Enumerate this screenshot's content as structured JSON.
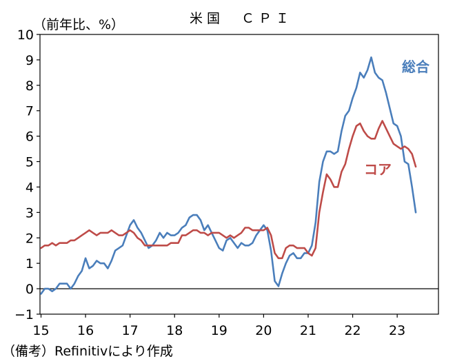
{
  "colors": {
    "headline": "#4a7ebb",
    "core": "#be4b48",
    "axis": "#000000"
  },
  "chart_data": {
    "type": "line",
    "title": "米国　ＣＰＩ",
    "ylabel": "（前年比、%）",
    "xlabel": "",
    "source": "（備考）Refinitivにより作成",
    "ylim": [
      -1,
      10
    ],
    "yticks": [
      "10",
      "9",
      "8",
      "7",
      "6",
      "5",
      "4",
      "3",
      "2",
      "1",
      "0",
      "−1"
    ],
    "xticks": [
      "15",
      "16",
      "17",
      "18",
      "19",
      "20",
      "21",
      "22",
      "23"
    ],
    "grid": false,
    "x_start": "2015-01",
    "series": [
      {
        "name": "総合",
        "color": "#4a7ebb",
        "values": [
          -0.2,
          -0.0,
          -0.0,
          -0.1,
          0.0,
          0.2,
          0.2,
          0.2,
          -0.0,
          0.2,
          0.5,
          0.7,
          1.2,
          0.8,
          0.9,
          1.1,
          1.0,
          1.0,
          0.8,
          1.1,
          1.5,
          1.6,
          1.7,
          2.1,
          2.5,
          2.7,
          2.4,
          2.2,
          1.9,
          1.6,
          1.7,
          1.9,
          2.2,
          2.0,
          2.2,
          2.1,
          2.1,
          2.2,
          2.4,
          2.5,
          2.8,
          2.9,
          2.9,
          2.7,
          2.3,
          2.5,
          2.2,
          1.9,
          1.6,
          1.5,
          1.9,
          2.0,
          1.8,
          1.6,
          1.8,
          1.7,
          1.7,
          1.8,
          2.1,
          2.3,
          2.5,
          2.3,
          1.5,
          0.3,
          0.1,
          0.6,
          1.0,
          1.3,
          1.4,
          1.2,
          1.2,
          1.4,
          1.4,
          1.7,
          2.6,
          4.2,
          5.0,
          5.4,
          5.4,
          5.3,
          5.4,
          6.2,
          6.8,
          7.0,
          7.5,
          7.9,
          8.5,
          8.3,
          8.6,
          9.1,
          8.5,
          8.3,
          8.2,
          7.7,
          7.1,
          6.5,
          6.4,
          6.0,
          5.0,
          4.9,
          4.0,
          3.0
        ]
      },
      {
        "name": "コア",
        "color": "#be4b48",
        "values": [
          1.6,
          1.7,
          1.7,
          1.8,
          1.7,
          1.8,
          1.8,
          1.8,
          1.9,
          1.9,
          2.0,
          2.1,
          2.2,
          2.3,
          2.2,
          2.1,
          2.2,
          2.2,
          2.2,
          2.3,
          2.2,
          2.1,
          2.1,
          2.2,
          2.3,
          2.2,
          2.0,
          1.9,
          1.7,
          1.7,
          1.7,
          1.7,
          1.7,
          1.7,
          1.7,
          1.8,
          1.8,
          1.8,
          2.1,
          2.1,
          2.2,
          2.3,
          2.3,
          2.2,
          2.2,
          2.1,
          2.2,
          2.2,
          2.2,
          2.1,
          2.0,
          2.1,
          2.0,
          2.1,
          2.2,
          2.4,
          2.4,
          2.3,
          2.3,
          2.3,
          2.3,
          2.4,
          2.1,
          1.4,
          1.2,
          1.2,
          1.6,
          1.7,
          1.7,
          1.6,
          1.6,
          1.6,
          1.4,
          1.3,
          1.6,
          3.0,
          3.8,
          4.5,
          4.3,
          4.0,
          4.0,
          4.6,
          4.9,
          5.5,
          6.0,
          6.4,
          6.5,
          6.2,
          6.0,
          5.9,
          5.9,
          6.3,
          6.6,
          6.3,
          6.0,
          5.7,
          5.6,
          5.5,
          5.6,
          5.5,
          5.3,
          4.8
        ]
      }
    ]
  }
}
